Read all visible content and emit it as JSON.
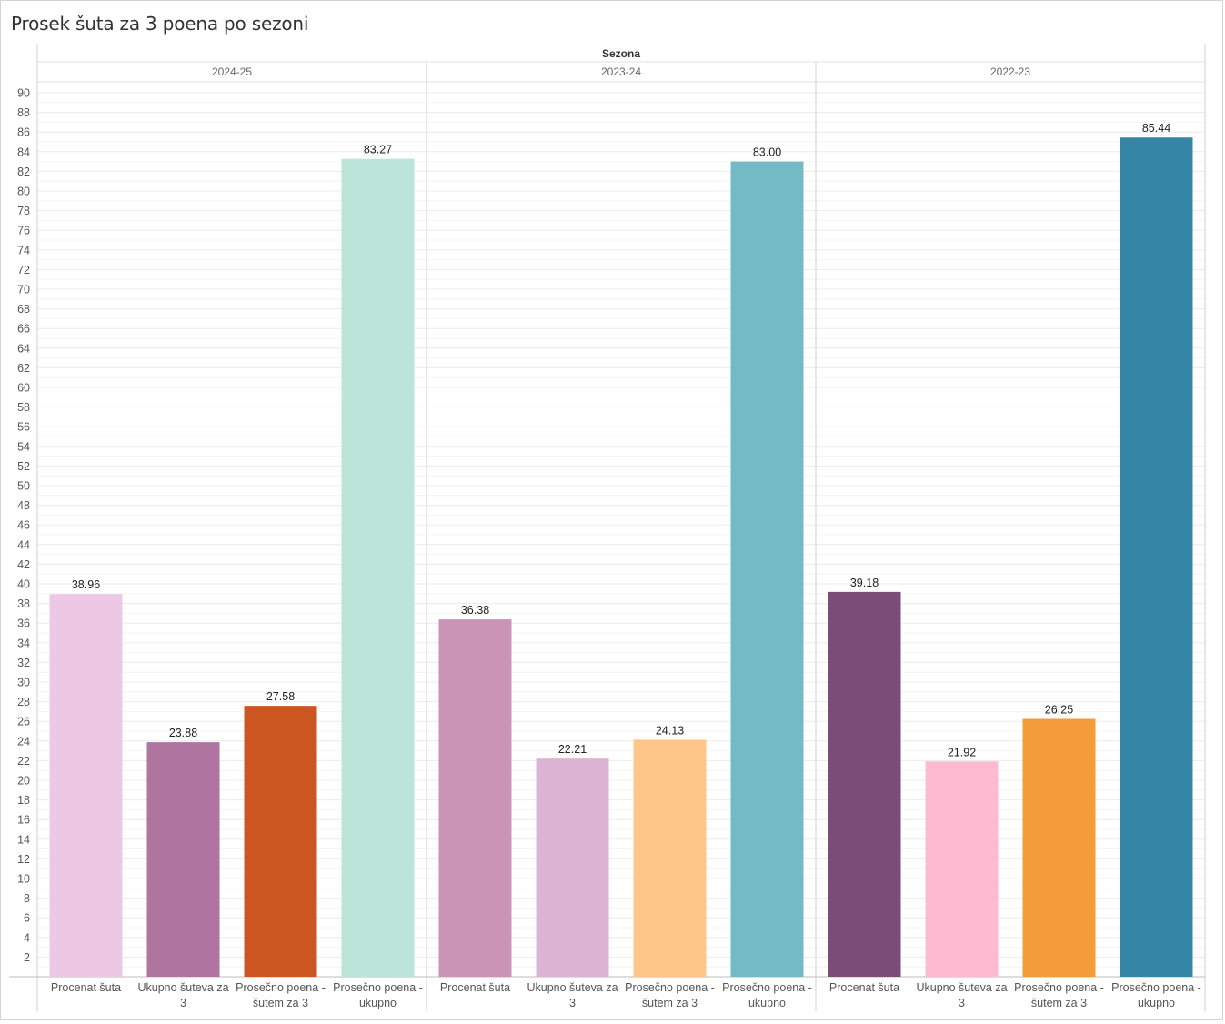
{
  "chart_data": {
    "type": "bar",
    "title": "Prosek šuta za 3 poena po sezoni",
    "column_header": "Sezona",
    "ylim": [
      0,
      90
    ],
    "y_ticks": [
      2,
      4,
      6,
      8,
      10,
      12,
      14,
      16,
      18,
      20,
      22,
      24,
      26,
      28,
      30,
      32,
      34,
      36,
      38,
      40,
      42,
      44,
      46,
      48,
      50,
      52,
      54,
      56,
      58,
      60,
      62,
      64,
      66,
      68,
      70,
      72,
      74,
      76,
      78,
      80,
      82,
      84,
      86,
      88,
      90
    ],
    "panels": [
      {
        "season": "2024-25",
        "bars": [
          {
            "category": "Procenat šuta",
            "category_lines": [
              "Procenat šuta"
            ],
            "value": 38.96,
            "label": "38.96",
            "color": "#ecc8e4"
          },
          {
            "category": "Ukupno šuteva za 3",
            "category_lines": [
              "Ukupno šuteva za",
              "3"
            ],
            "value": 23.88,
            "label": "23.88",
            "color": "#b074a0"
          },
          {
            "category": "Prosečno poena - šutem za 3",
            "category_lines": [
              "Prosečno poena -",
              "šutem za 3"
            ],
            "value": 27.58,
            "label": "27.58",
            "color": "#cb5622"
          },
          {
            "category": "Prosečno poena - ukupno",
            "category_lines": [
              "Prosečno poena -",
              "ukupno"
            ],
            "value": 83.27,
            "label": "83.27",
            "color": "#bde4d9"
          }
        ]
      },
      {
        "season": "2023-24",
        "bars": [
          {
            "category": "Procenat šuta",
            "category_lines": [
              "Procenat šuta"
            ],
            "value": 36.38,
            "label": "36.38",
            "color": "#c994b6"
          },
          {
            "category": "Ukupno šuteva za 3",
            "category_lines": [
              "Ukupno šuteva za",
              "3"
            ],
            "value": 22.21,
            "label": "22.21",
            "color": "#deb4d4"
          },
          {
            "category": "Prosečno poena - šutem za 3",
            "category_lines": [
              "Prosečno poena -",
              "šutem za 3"
            ],
            "value": 24.13,
            "label": "24.13",
            "color": "#fec688"
          },
          {
            "category": "Prosečno poena - ukupno",
            "category_lines": [
              "Prosečno poena -",
              "ukupno"
            ],
            "value": 83.0,
            "label": "83.00",
            "color": "#74b9c6"
          }
        ]
      },
      {
        "season": "2022-23",
        "bars": [
          {
            "category": "Procenat šuta",
            "category_lines": [
              "Procenat šuta"
            ],
            "value": 39.18,
            "label": "39.18",
            "color": "#7c4c78"
          },
          {
            "category": "Ukupno šuteva za 3",
            "category_lines": [
              "Ukupno šuteva za",
              "3"
            ],
            "value": 21.92,
            "label": "21.92",
            "color": "#febad0"
          },
          {
            "category": "Prosečno poena - šutem za 3",
            "category_lines": [
              "Prosečno poena -",
              "šutem za 3"
            ],
            "value": 26.25,
            "label": "26.25",
            "color": "#f49c3c"
          },
          {
            "category": "Prosečno poena - ukupno",
            "category_lines": [
              "Prosečno poena -",
              "ukupno"
            ],
            "value": 85.44,
            "label": "85.44",
            "color": "#3586a6"
          }
        ]
      }
    ]
  }
}
